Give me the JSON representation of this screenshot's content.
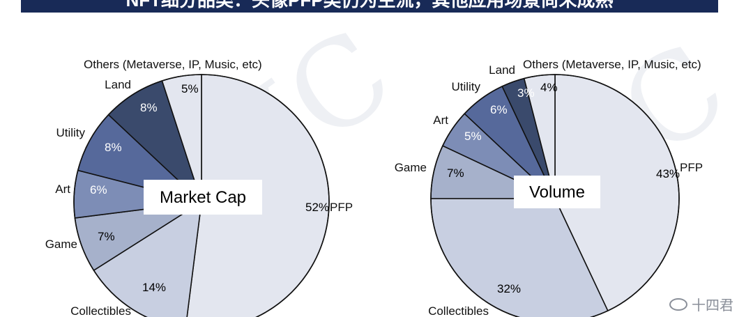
{
  "banner": {
    "title": "NFT细分品类：头像PFP类仍为主流，其他应用场景尚未成熟"
  },
  "footer": {
    "brand": "十四君"
  },
  "colors": {
    "PFP": "#e3e6ef",
    "Collectibles": "#c8cfe1",
    "Game": "#a6b1cb",
    "Art": "#7d8db6",
    "Utility": "#56699b",
    "Land": "#3a4a6c",
    "Others": "#e3e6ef",
    "banner": "#182a57"
  },
  "chart_data": [
    {
      "type": "pie",
      "title": "Market Cap",
      "slices": [
        {
          "label": "PFP",
          "value": 52,
          "pct_text": "52%"
        },
        {
          "label": "Collectibles",
          "value": 14,
          "pct_text": "14%"
        },
        {
          "label": "Game",
          "value": 7,
          "pct_text": "7%"
        },
        {
          "label": "Art",
          "value": 6,
          "pct_text": "6%"
        },
        {
          "label": "Utility",
          "value": 8,
          "pct_text": "8%"
        },
        {
          "label": "Land",
          "value": 8,
          "pct_text": "8%"
        },
        {
          "label": "Others (Metaverse, IP, Music, etc)",
          "value": 5,
          "pct_text": "5%"
        }
      ]
    },
    {
      "type": "pie",
      "title": "Volume",
      "slices": [
        {
          "label": "PFP",
          "value": 43,
          "pct_text": "43%"
        },
        {
          "label": "Collectibles",
          "value": 32,
          "pct_text": "32%"
        },
        {
          "label": "Game",
          "value": 7,
          "pct_text": "7%"
        },
        {
          "label": "Art",
          "value": 5,
          "pct_text": "5%"
        },
        {
          "label": "Utility",
          "value": 6,
          "pct_text": "6%"
        },
        {
          "label": "Land",
          "value": 3,
          "pct_text": "3%"
        },
        {
          "label": "Others (Metaverse, IP, Music, etc)",
          "value": 4,
          "pct_text": "4%"
        }
      ]
    }
  ]
}
